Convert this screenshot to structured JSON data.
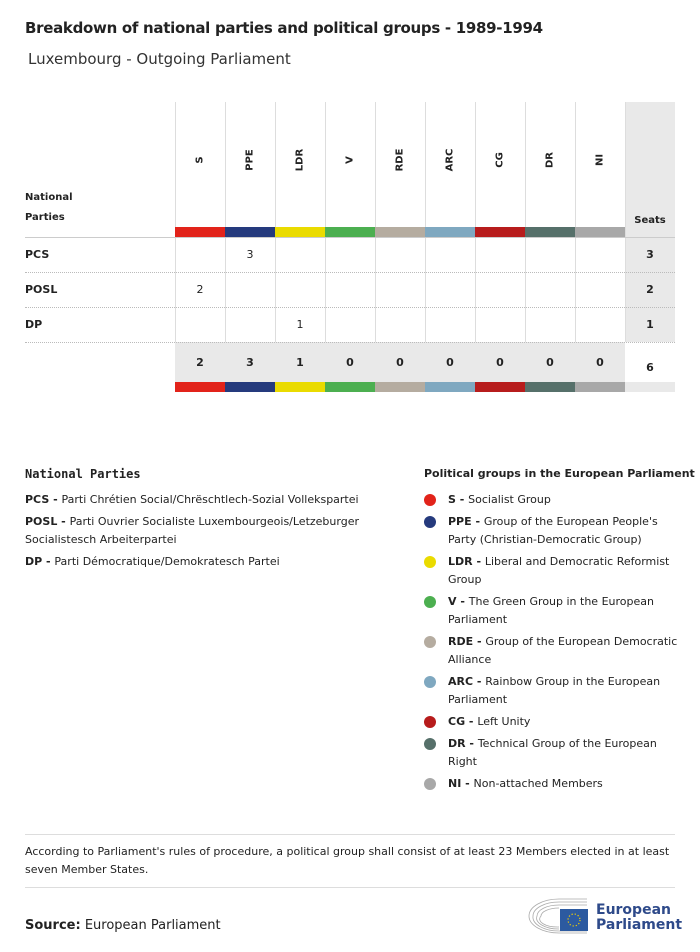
{
  "title": "Breakdown of national parties and political groups - 1989-1994",
  "subtitle": "Luxembourg - Outgoing Parliament",
  "table": {
    "row_header": [
      "National",
      "Parties"
    ],
    "seats_header": "Seats",
    "groups": [
      {
        "code": "S",
        "color": "#e2231a"
      },
      {
        "code": "PPE",
        "color": "#253a7d"
      },
      {
        "code": "LDR",
        "color": "#eadb00"
      },
      {
        "code": "V",
        "color": "#4caf50"
      },
      {
        "code": "RDE",
        "color": "#b5aca0"
      },
      {
        "code": "ARC",
        "color": "#7fa8c0"
      },
      {
        "code": "CG",
        "color": "#b71c1c"
      },
      {
        "code": "DR",
        "color": "#56706a"
      },
      {
        "code": "NI",
        "color": "#a8a8a8"
      }
    ],
    "rows": [
      {
        "party": "PCS",
        "values": [
          "",
          "3",
          "",
          "",
          "",
          "",
          "",
          "",
          ""
        ],
        "seats": "3"
      },
      {
        "party": "POSL",
        "values": [
          "2",
          "",
          "",
          "",
          "",
          "",
          "",
          "",
          ""
        ],
        "seats": "2"
      },
      {
        "party": "DP",
        "values": [
          "",
          "",
          "1",
          "",
          "",
          "",
          "",
          "",
          ""
        ],
        "seats": "1"
      }
    ],
    "totals": [
      "2",
      "3",
      "1",
      "0",
      "0",
      "0",
      "0",
      "0",
      "0"
    ],
    "total_seats": "6"
  },
  "national_parties": {
    "heading": "National Parties",
    "items": [
      {
        "abbr": "PCS - ",
        "name": "Parti Chrétien Social/Chrëschtlech-Sozial Vollekspartei"
      },
      {
        "abbr": "POSL - ",
        "name": "Parti Ouvrier Socialiste Luxembourgeois/Letzeburger Socialistesch Arbeiterpartei"
      },
      {
        "abbr": "DP - ",
        "name": "Parti Démocratique/Demokratesch Partei"
      }
    ]
  },
  "political_groups": {
    "heading": "Political groups in the European Parliament",
    "items": [
      {
        "abbr": "S - ",
        "name": "Socialist Group"
      },
      {
        "abbr": "PPE - ",
        "name": "Group of the European People's Party (Christian-Democratic Group)"
      },
      {
        "abbr": "LDR - ",
        "name": "Liberal and Democratic Reformist Group"
      },
      {
        "abbr": "V - ",
        "name": "The Green Group in the European Parliament"
      },
      {
        "abbr": "RDE - ",
        "name": "Group of the European Democratic Alliance"
      },
      {
        "abbr": "ARC - ",
        "name": "Rainbow Group in the European Parliament"
      },
      {
        "abbr": "CG - ",
        "name": "Left Unity"
      },
      {
        "abbr": "DR - ",
        "name": "Technical Group of the European Right"
      },
      {
        "abbr": "NI - ",
        "name": "Non-attached Members"
      }
    ]
  },
  "note": "According to Parliament's rules of procedure, a political group shall consist of at least 23 Members elected in at least seven Member States.",
  "source": {
    "label": "Source:",
    "value": " European Parliament"
  },
  "logo": {
    "text": [
      "European",
      "Parliament"
    ],
    "color": "#2e4a8a"
  }
}
